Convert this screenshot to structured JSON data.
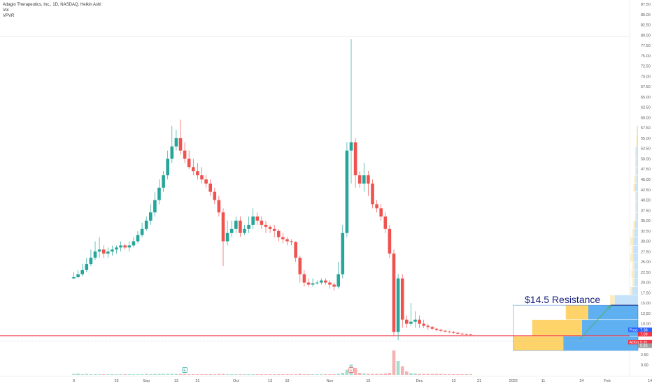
{
  "legend": {
    "symbol": "Adagio Therapeutics, Inc., 1D, NASDAQ, Heikin Ashi",
    "vol": "Vol",
    "vpvr": "VPVR"
  },
  "colors": {
    "up": "#26a69a",
    "down": "#ef5350",
    "vol_up": "#a8dccf",
    "vol_down": "#f5b2b2",
    "vp_blue": "#5eb0f0",
    "vp_blue_light": "#c6e3fa",
    "vp_yellow": "#fdd36a",
    "vp_yellow_light": "#fdecc0",
    "support_line": "#f23645",
    "arrow": "#4caf50",
    "annotation": "#1a237e"
  },
  "chart_data": {
    "type": "candlestick",
    "y_axis": {
      "min": -2.5,
      "max": 87.5,
      "ticks": [
        "87.50",
        "85.00",
        "82.50",
        "80.00",
        "77.50",
        "75.00",
        "72.50",
        "70.00",
        "67.50",
        "65.00",
        "62.50",
        "60.00",
        "57.50",
        "55.00",
        "52.50",
        "50.00",
        "47.50",
        "45.00",
        "42.50",
        "40.00",
        "37.50",
        "35.00",
        "32.50",
        "30.00",
        "27.50",
        "25.00",
        "22.50",
        "20.00",
        "17.50",
        "15.00",
        "12.50",
        "10.00",
        "5.00",
        "2.50",
        "0.00"
      ],
      "position": "right"
    },
    "x_axis": {
      "ticks": [
        {
          "label": "9",
          "i": 0
        },
        {
          "label": "23",
          "i": 10
        },
        {
          "label": "Sep",
          "i": 17
        },
        {
          "label": "13",
          "i": 24
        },
        {
          "label": "21",
          "i": 29
        },
        {
          "label": "Oct",
          "i": 38
        },
        {
          "label": "13",
          "i": 46
        },
        {
          "label": "19",
          "i": 50
        },
        {
          "label": "Nov",
          "i": 60
        },
        {
          "label": "15",
          "i": 69
        },
        {
          "label": "Dec",
          "i": 81
        },
        {
          "label": "13",
          "i": 89
        },
        {
          "label": "21",
          "i": 95
        },
        {
          "label": "2022",
          "i": 103
        },
        {
          "label": "11",
          "i": 110
        },
        {
          "label": "24",
          "i": 119
        },
        {
          "label": "Feb",
          "i": 125
        },
        {
          "label": "14",
          "i": 135
        },
        {
          "label": "Mar",
          "i": 145
        }
      ]
    },
    "candles": [
      [
        21,
        21.3,
        20.9,
        22.5
      ],
      [
        21.3,
        22,
        21,
        23
      ],
      [
        22,
        23,
        21.5,
        24.5
      ],
      [
        23,
        24.5,
        22.5,
        26
      ],
      [
        24.5,
        26,
        24,
        28
      ],
      [
        26,
        27.5,
        25.5,
        30
      ],
      [
        27.5,
        28,
        26,
        31
      ],
      [
        28,
        27,
        26,
        29
      ],
      [
        27,
        27.5,
        26,
        28.5
      ],
      [
        27.5,
        28,
        26.5,
        29
      ],
      [
        28,
        28.5,
        27,
        29
      ],
      [
        28.5,
        29,
        27.5,
        30
      ],
      [
        29,
        28.5,
        28,
        29.5
      ],
      [
        28.5,
        29,
        27.5,
        30
      ],
      [
        29,
        30,
        28.5,
        31
      ],
      [
        30,
        31.5,
        29.5,
        32.5
      ],
      [
        31.5,
        33,
        31,
        34.5
      ],
      [
        33,
        35,
        32.5,
        36
      ],
      [
        35,
        37,
        34,
        39
      ],
      [
        37,
        40,
        36,
        42
      ],
      [
        40,
        43,
        39,
        45
      ],
      [
        43,
        46,
        42,
        47
      ],
      [
        46,
        50,
        45,
        52
      ],
      [
        50,
        53,
        49,
        58
      ],
      [
        53,
        55,
        52,
        57
      ],
      [
        55,
        52,
        51,
        59.5
      ],
      [
        52,
        50,
        49,
        54
      ],
      [
        50,
        48,
        47.5,
        52
      ],
      [
        48,
        47,
        46,
        50
      ],
      [
        47,
        46,
        45,
        49
      ],
      [
        46,
        45,
        44,
        48
      ],
      [
        45,
        44,
        43,
        46
      ],
      [
        44,
        42,
        41,
        45
      ],
      [
        42,
        40,
        39,
        43
      ],
      [
        40,
        37,
        36,
        41
      ],
      [
        37,
        30,
        24,
        38
      ],
      [
        30,
        32,
        29,
        35
      ],
      [
        32,
        33,
        31,
        35
      ],
      [
        33,
        35,
        32,
        36
      ],
      [
        35,
        32,
        31,
        36
      ],
      [
        32,
        33,
        31.5,
        34
      ],
      [
        33,
        34,
        32,
        36
      ],
      [
        34,
        36,
        33,
        38
      ],
      [
        36,
        35,
        34,
        37
      ],
      [
        35,
        34,
        33,
        36
      ],
      [
        34,
        33.5,
        32,
        35
      ],
      [
        33.5,
        33,
        32,
        34
      ],
      [
        33,
        32.5,
        31,
        34
      ],
      [
        32.5,
        31,
        30,
        33
      ],
      [
        31,
        30.5,
        29.5,
        32
      ],
      [
        30.5,
        30,
        29,
        31
      ],
      [
        30,
        29.8,
        29,
        30.5
      ],
      [
        29.8,
        26,
        25,
        30
      ],
      [
        26,
        22,
        20,
        26.5
      ],
      [
        22,
        20,
        19,
        23
      ],
      [
        20,
        19.5,
        19,
        21
      ],
      [
        19.5,
        19.8,
        19,
        21
      ],
      [
        19.8,
        20,
        19.5,
        20.5
      ],
      [
        20,
        20.5,
        19.5,
        21
      ],
      [
        20.5,
        20,
        19.5,
        21
      ],
      [
        20,
        19.5,
        18.5,
        20.5
      ],
      [
        19.5,
        19,
        18,
        20
      ],
      [
        19,
        22,
        18.5,
        25
      ],
      [
        22,
        32,
        21,
        34
      ],
      [
        32,
        52,
        31,
        54
      ],
      [
        52,
        54,
        44,
        79
      ],
      [
        54,
        46,
        43,
        55
      ],
      [
        46,
        44,
        43,
        47
      ],
      [
        44,
        46,
        42,
        49
      ],
      [
        46,
        44,
        41,
        47
      ],
      [
        44,
        39,
        38,
        45
      ],
      [
        39,
        38,
        37,
        40
      ],
      [
        38,
        36,
        35,
        39
      ],
      [
        36,
        33,
        32,
        37
      ],
      [
        33,
        27,
        26,
        34
      ],
      [
        27,
        8,
        7,
        28
      ],
      [
        8,
        21,
        6,
        22
      ],
      [
        21,
        11,
        9,
        22
      ],
      [
        11,
        10,
        9,
        12
      ],
      [
        10,
        10.5,
        9.5,
        15
      ],
      [
        10.5,
        11,
        9,
        13
      ],
      [
        11,
        10,
        9,
        12
      ],
      [
        10,
        9.5,
        9,
        11
      ],
      [
        9.5,
        9.2,
        8.5,
        10
      ],
      [
        9.2,
        8.8,
        8.5,
        9.5
      ],
      [
        8.8,
        8.5,
        8.2,
        9
      ],
      [
        8.5,
        8.3,
        8,
        8.8
      ],
      [
        8.3,
        8.1,
        7.9,
        8.5
      ],
      [
        8.1,
        8,
        7.8,
        8.3
      ],
      [
        8,
        7.8,
        7.6,
        8.2
      ],
      [
        7.8,
        7.6,
        7.4,
        8
      ],
      [
        7.6,
        7.5,
        7.3,
        7.8
      ],
      [
        7.5,
        7.4,
        7.2,
        7.6
      ],
      [
        7.4,
        7.35,
        7.2,
        7.5
      ]
    ],
    "volume_max": 8,
    "volume": [
      0.3,
      0.4,
      0.2,
      0.3,
      0.2,
      0.2,
      0.2,
      0.2,
      0.2,
      0.2,
      0.2,
      0.2,
      0.2,
      0.2,
      0.2,
      0.2,
      0.2,
      0.3,
      0.2,
      0.3,
      0.3,
      0.3,
      0.3,
      0.3,
      0.3,
      0.3,
      0.3,
      0.2,
      0.2,
      0.2,
      0.2,
      0.2,
      0.2,
      0.2,
      0.3,
      0.3,
      0.2,
      0.2,
      0.2,
      0.2,
      0.2,
      0.2,
      0.2,
      0.2,
      0.2,
      0.2,
      0.2,
      0.2,
      0.2,
      0.2,
      0.2,
      0.2,
      0.2,
      0.3,
      0.2,
      0.2,
      0.2,
      0.2,
      0.2,
      0.2,
      0.2,
      0.2,
      0.3,
      0.6,
      1.5,
      3,
      2,
      0.6,
      0.4,
      0.3,
      0.3,
      0.3,
      0.3,
      0.4,
      0.6,
      7,
      4,
      2.5,
      1,
      0.5,
      0.4,
      0.3,
      0.3,
      0.3,
      0.3,
      0.3,
      0.3,
      0.2,
      0.2,
      0.2,
      0.2,
      0.2,
      0.2,
      0.2
    ],
    "volume_profile": [
      {
        "low": 3.5,
        "high": 7.0,
        "up": 40,
        "down": 60,
        "highlight": true
      },
      {
        "low": 7.0,
        "high": 11.0,
        "up": 40,
        "down": 45,
        "highlight": true
      },
      {
        "low": 11.0,
        "high": 14.5,
        "up": 18,
        "down": 40,
        "highlight": true
      },
      {
        "low": 14.5,
        "high": 17.0,
        "up": 5,
        "down": 25,
        "highlight": false
      },
      {
        "low": 17.0,
        "high": 19.0,
        "up": 2,
        "down": 6,
        "highlight": false
      },
      {
        "low": 19.0,
        "high": 21.0,
        "up": 2,
        "down": 4,
        "highlight": false
      },
      {
        "low": 21.0,
        "high": 23.0,
        "up": 3,
        "down": 4,
        "highlight": false
      },
      {
        "low": 23.0,
        "high": 25.0,
        "up": 2,
        "down": 4,
        "highlight": false
      },
      {
        "low": 25.0,
        "high": 27.0,
        "up": 3,
        "down": 5,
        "highlight": false
      },
      {
        "low": 27.0,
        "high": 29.0,
        "up": 2,
        "down": 5,
        "highlight": false
      },
      {
        "low": 29.0,
        "high": 31.0,
        "up": 3,
        "down": 5,
        "highlight": false
      },
      {
        "low": 31.0,
        "high": 33.0,
        "up": 2,
        "down": 4,
        "highlight": false
      },
      {
        "low": 33.0,
        "high": 35.0,
        "up": 2,
        "down": 3,
        "highlight": false
      },
      {
        "low": 35.0,
        "high": 37.0,
        "up": 1,
        "down": 2,
        "highlight": false
      },
      {
        "low": 37.0,
        "high": 40.0,
        "up": 1,
        "down": 2,
        "highlight": false
      },
      {
        "low": 40.0,
        "high": 42.0,
        "up": 1,
        "down": 2,
        "highlight": false
      },
      {
        "low": 42.0,
        "high": 44.0,
        "up": 2,
        "down": 3,
        "highlight": false
      },
      {
        "low": 44.0,
        "high": 46.0,
        "up": 2,
        "down": 2,
        "highlight": false
      },
      {
        "low": 46.0,
        "high": 48.0,
        "up": 1,
        "down": 2,
        "highlight": false
      },
      {
        "low": 48.0,
        "high": 50.0,
        "up": 1,
        "down": 2,
        "highlight": false
      },
      {
        "low": 50.0,
        "high": 53.0,
        "up": 1,
        "down": 2,
        "highlight": false
      },
      {
        "low": 53.0,
        "high": 56.0,
        "up": 1,
        "down": 1,
        "highlight": false
      },
      {
        "low": 56.0,
        "high": 58.0,
        "up": 0.5,
        "down": 1,
        "highlight": false
      }
    ],
    "support_level": 7.09,
    "resistance_level": 14.5,
    "annotation": {
      "text": "$14.5 Resistance",
      "arrow_from": {
        "i": 118.5,
        "price": 6.2
      },
      "arrow_to": {
        "i": 125.8,
        "price": 14.4
      }
    },
    "price_tags": [
      {
        "label": "7.38",
        "price": 7.38,
        "color": "#2962ff"
      },
      {
        "label": "7.09",
        "price": 7.09,
        "color": "#f23645"
      },
      {
        "label": "5.91",
        "price": 5.91,
        "color": "#f23645"
      },
      {
        "label": "5.83",
        "price": 5.83,
        "color": "#9e9e9e"
      }
    ],
    "price_tag_names": [
      {
        "label": "Pred",
        "price": 7.38,
        "color": "#2962ff"
      },
      {
        "label": "ADGI",
        "price": 5.91,
        "color": "#f23645"
      }
    ],
    "event_markers": [
      {
        "label": "E",
        "i": 26,
        "color": "#26a69a"
      },
      {
        "label": "E",
        "i": 65,
        "color": "#ef5350"
      },
      {
        "label": "E",
        "i": 145,
        "color": "#ba68c8"
      }
    ]
  }
}
